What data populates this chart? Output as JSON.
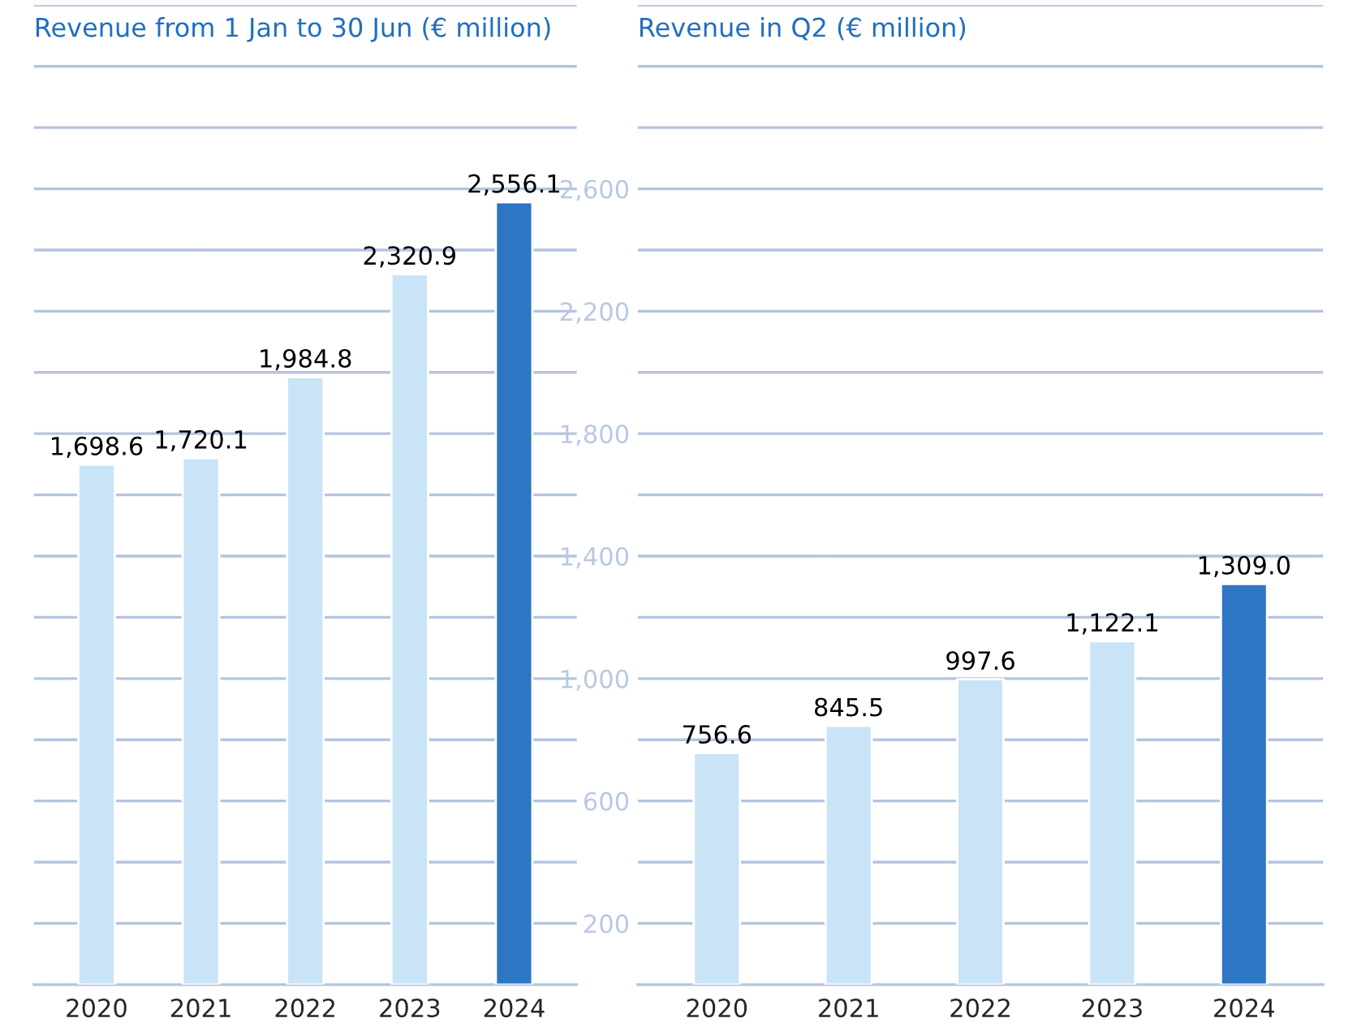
{
  "chart_data": [
    {
      "type": "bar",
      "title": "Revenue from 1 Jan to 30 Jun (€ million)",
      "categories": [
        "2020",
        "2021",
        "2022",
        "2023",
        "2024"
      ],
      "values": [
        1698.6,
        1720.1,
        1984.8,
        2320.9,
        2556.1
      ],
      "colors": [
        "#c9e3f7",
        "#c9e3f7",
        "#c9e3f7",
        "#c9e3f7",
        "#2e75c4"
      ],
      "value_labels": [
        "1,698.6",
        "1,720.1",
        "1,984.8",
        "2,320.9",
        "2,556.1"
      ],
      "ylim": [
        0,
        3200
      ],
      "yticks": [
        {
          "value": 200,
          "label": null
        },
        {
          "value": 400,
          "label": null
        },
        {
          "value": 600,
          "label": null
        },
        {
          "value": 800,
          "label": null
        },
        {
          "value": 1000,
          "label": null
        },
        {
          "value": 1200,
          "label": null
        },
        {
          "value": 1400,
          "label": null
        },
        {
          "value": 1600,
          "label": null
        },
        {
          "value": 1800,
          "label": null
        },
        {
          "value": 2000,
          "label": null
        },
        {
          "value": 2200,
          "label": null
        },
        {
          "value": 2400,
          "label": null
        },
        {
          "value": 2600,
          "label": null
        },
        {
          "value": 2800,
          "label": null
        },
        {
          "value": 3000,
          "label": null
        },
        {
          "value": 3200,
          "label": null
        }
      ],
      "grid": "y",
      "tick_labels": "x"
    },
    {
      "type": "bar",
      "title": "Revenue in Q2 (€ million)",
      "categories": [
        "2020",
        "2021",
        "2022",
        "2023",
        "2024"
      ],
      "values": [
        756.6,
        845.5,
        997.6,
        1122.1,
        1309.0
      ],
      "colors": [
        "#c9e3f7",
        "#c9e3f7",
        "#c9e3f7",
        "#c9e3f7",
        "#2e75c4"
      ],
      "value_labels": [
        "756.6",
        "845.5",
        "997.6",
        "1,122.1",
        "1,309.0"
      ],
      "ylim": [
        0,
        3200
      ],
      "yticks": [
        {
          "value": 200,
          "label": "200"
        },
        {
          "value": 400,
          "label": null
        },
        {
          "value": 600,
          "label": "600"
        },
        {
          "value": 800,
          "label": null
        },
        {
          "value": 1000,
          "label": "1,000"
        },
        {
          "value": 1200,
          "label": null
        },
        {
          "value": 1400,
          "label": "1,400"
        },
        {
          "value": 1600,
          "label": null
        },
        {
          "value": 1800,
          "label": "1,800"
        },
        {
          "value": 2000,
          "label": null
        },
        {
          "value": 2200,
          "label": "2,200"
        },
        {
          "value": 2400,
          "label": null
        },
        {
          "value": 2600,
          "label": "2,600"
        },
        {
          "value": 2800,
          "label": null
        },
        {
          "value": 3000,
          "label": null
        },
        {
          "value": 3200,
          "label": null
        }
      ],
      "grid": "y"
    }
  ]
}
